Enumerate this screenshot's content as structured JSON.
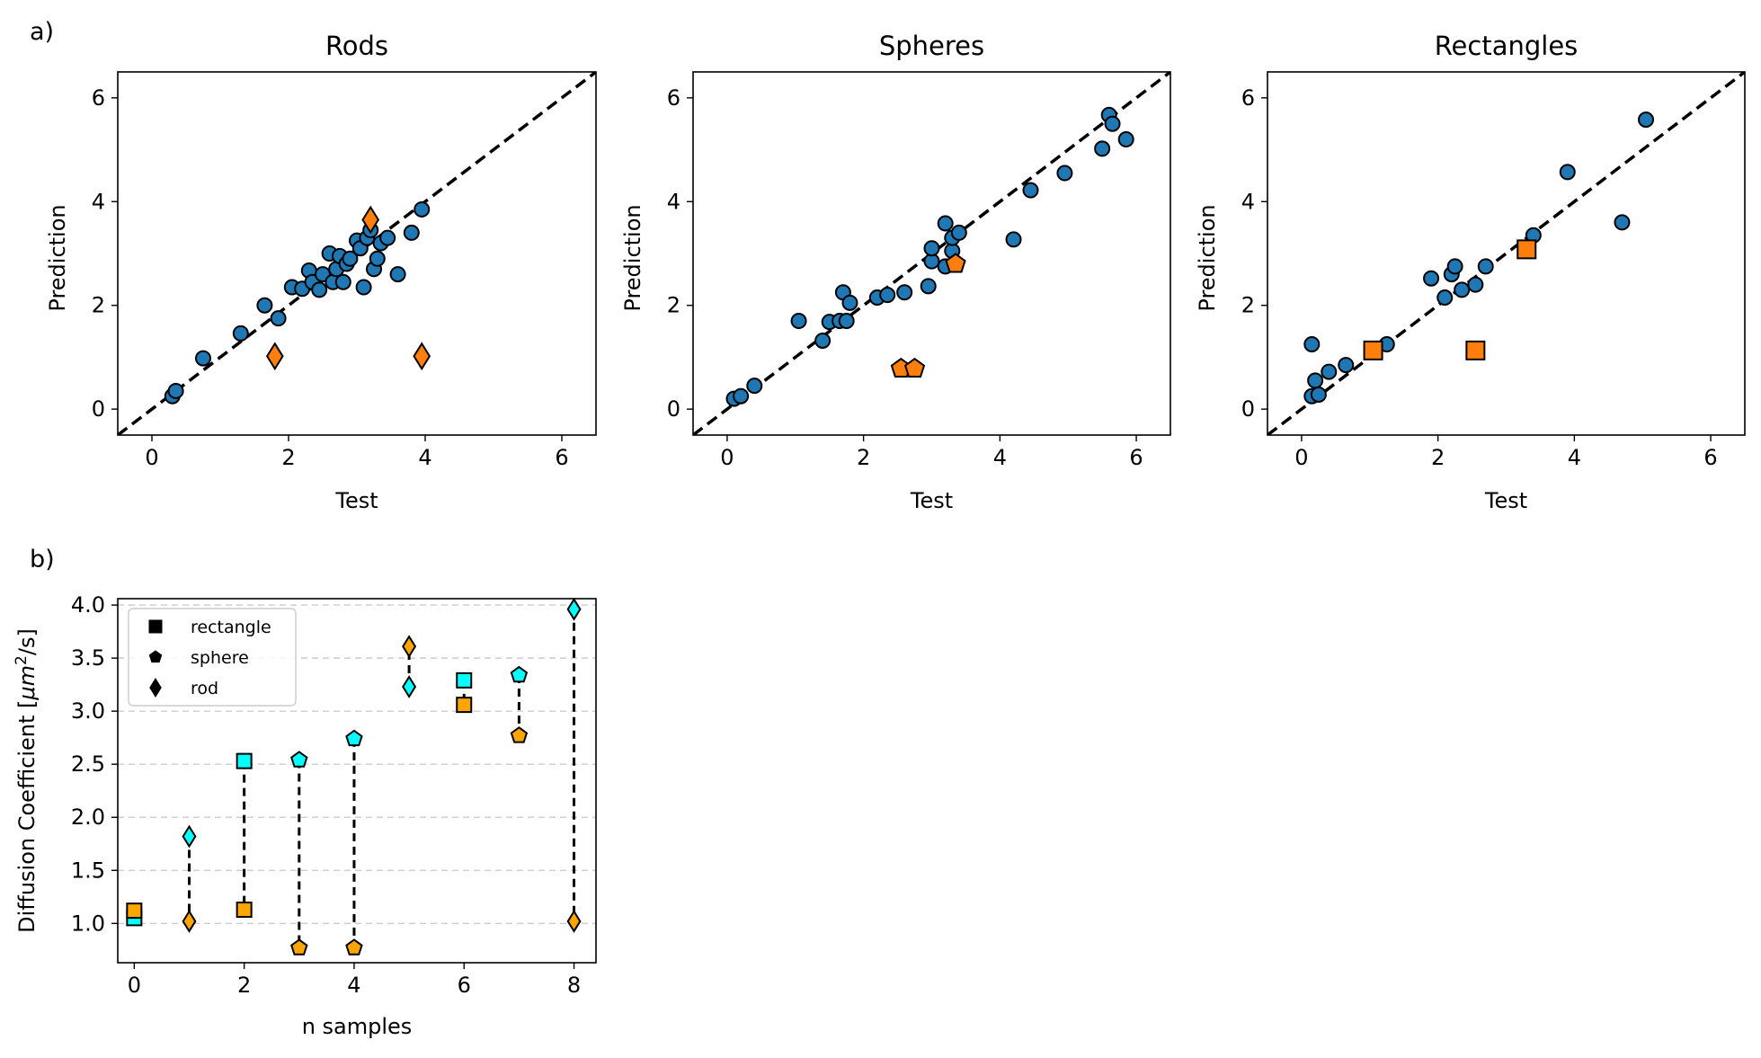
{
  "panel_labels": [
    "a)",
    "b)"
  ],
  "chart_data": [
    {
      "type": "scatter",
      "title": "Rods",
      "xlabel": "Test",
      "ylabel": "Prediction",
      "xlim": [
        -0.5,
        6.5
      ],
      "ylim": [
        -0.5,
        6.5
      ],
      "xticks": [
        0,
        2,
        4,
        6
      ],
      "yticks": [
        0,
        2,
        4,
        6
      ],
      "reference_line": "y = x",
      "outlier_marker": "diamond",
      "series": [
        {
          "role": "points",
          "color": "#1f77b4",
          "marker": "circle",
          "points": [
            [
              0.3,
              0.25
            ],
            [
              0.35,
              0.35
            ],
            [
              0.75,
              0.98
            ],
            [
              1.3,
              1.46
            ],
            [
              1.65,
              2.0
            ],
            [
              1.85,
              1.75
            ],
            [
              2.05,
              2.35
            ],
            [
              2.2,
              2.32
            ],
            [
              2.3,
              2.67
            ],
            [
              2.35,
              2.45
            ],
            [
              2.45,
              2.3
            ],
            [
              2.5,
              2.6
            ],
            [
              2.6,
              3.0
            ],
            [
              2.65,
              2.45
            ],
            [
              2.7,
              2.7
            ],
            [
              2.75,
              2.95
            ],
            [
              2.8,
              2.45
            ],
            [
              2.85,
              2.8
            ],
            [
              2.9,
              2.9
            ],
            [
              3.0,
              3.25
            ],
            [
              3.05,
              3.1
            ],
            [
              3.1,
              2.35
            ],
            [
              3.15,
              3.3
            ],
            [
              3.2,
              3.45
            ],
            [
              3.25,
              2.7
            ],
            [
              3.3,
              2.9
            ],
            [
              3.35,
              3.2
            ],
            [
              3.45,
              3.3
            ],
            [
              3.6,
              2.6
            ],
            [
              3.8,
              3.4
            ],
            [
              3.95,
              3.85
            ]
          ]
        },
        {
          "role": "outliers",
          "color": "#ff7f0e",
          "marker": "diamond",
          "points": [
            [
              1.8,
              1.02
            ],
            [
              3.2,
              3.65
            ],
            [
              3.95,
              1.02
            ]
          ]
        }
      ]
    },
    {
      "type": "scatter",
      "title": "Spheres",
      "xlabel": "Test",
      "ylabel": "Prediction",
      "xlim": [
        -0.5,
        6.5
      ],
      "ylim": [
        -0.5,
        6.5
      ],
      "xticks": [
        0,
        2,
        4,
        6
      ],
      "yticks": [
        0,
        2,
        4,
        6
      ],
      "reference_line": "y = x",
      "outlier_marker": "pentagon",
      "series": [
        {
          "role": "points",
          "color": "#1f77b4",
          "marker": "circle",
          "points": [
            [
              0.1,
              0.2
            ],
            [
              0.2,
              0.25
            ],
            [
              0.4,
              0.45
            ],
            [
              1.05,
              1.7
            ],
            [
              1.4,
              1.32
            ],
            [
              1.5,
              1.68
            ],
            [
              1.65,
              1.7
            ],
            [
              1.7,
              2.25
            ],
            [
              1.75,
              1.7
            ],
            [
              1.8,
              2.05
            ],
            [
              2.2,
              2.15
            ],
            [
              2.35,
              2.2
            ],
            [
              2.6,
              2.25
            ],
            [
              2.95,
              2.37
            ],
            [
              3.0,
              2.85
            ],
            [
              3.0,
              3.1
            ],
            [
              3.2,
              2.75
            ],
            [
              3.2,
              3.58
            ],
            [
              3.3,
              3.05
            ],
            [
              3.3,
              3.3
            ],
            [
              3.4,
              3.4
            ],
            [
              4.2,
              3.27
            ],
            [
              4.45,
              4.22
            ],
            [
              4.95,
              4.55
            ],
            [
              5.5,
              5.02
            ],
            [
              5.6,
              5.67
            ],
            [
              5.65,
              5.5
            ],
            [
              5.85,
              5.2
            ]
          ]
        },
        {
          "role": "outliers",
          "color": "#ff7f0e",
          "marker": "pentagon",
          "points": [
            [
              2.55,
              0.78
            ],
            [
              2.75,
              0.78
            ],
            [
              3.35,
              2.8
            ]
          ]
        }
      ]
    },
    {
      "type": "scatter",
      "title": "Rectangles",
      "xlabel": "Test",
      "ylabel": "Prediction",
      "xlim": [
        -0.5,
        6.5
      ],
      "ylim": [
        -0.5,
        6.5
      ],
      "xticks": [
        0,
        2,
        4,
        6
      ],
      "yticks": [
        0,
        2,
        4,
        6
      ],
      "reference_line": "y = x",
      "outlier_marker": "square",
      "series": [
        {
          "role": "points",
          "color": "#1f77b4",
          "marker": "circle",
          "points": [
            [
              0.15,
              0.25
            ],
            [
              0.15,
              1.25
            ],
            [
              0.2,
              0.55
            ],
            [
              0.25,
              0.28
            ],
            [
              0.4,
              0.72
            ],
            [
              0.65,
              0.85
            ],
            [
              1.25,
              1.25
            ],
            [
              1.9,
              2.52
            ],
            [
              2.1,
              2.15
            ],
            [
              2.2,
              2.6
            ],
            [
              2.25,
              2.75
            ],
            [
              2.35,
              2.3
            ],
            [
              2.55,
              2.4
            ],
            [
              2.7,
              2.75
            ],
            [
              3.4,
              3.35
            ],
            [
              3.9,
              4.57
            ],
            [
              4.7,
              3.6
            ],
            [
              5.05,
              5.58
            ]
          ]
        },
        {
          "role": "outliers",
          "color": "#ff7f0e",
          "marker": "square",
          "points": [
            [
              1.05,
              1.13
            ],
            [
              2.55,
              1.13
            ],
            [
              3.3,
              3.08
            ]
          ]
        }
      ]
    },
    {
      "type": "scatter",
      "xlabel": "n samples",
      "ylabel_prefix": "Diffusion Coefficient [",
      "ylabel_unit_base": "μm",
      "ylabel_unit_exp": "2",
      "ylabel_suffix": "/s]",
      "xlim": [
        -0.3,
        8.4
      ],
      "ylim": [
        0.63,
        4.06
      ],
      "xticks": [
        0,
        2,
        4,
        6,
        8
      ],
      "yticks": [
        1.0,
        1.5,
        2.0,
        2.5,
        3.0,
        3.5,
        4.0
      ],
      "ytick_labels": [
        "1.0",
        "1.5",
        "2.0",
        "2.5",
        "3.0",
        "3.5",
        "4.0"
      ],
      "grid": "horizontal dashed",
      "legend": {
        "position": "top-left",
        "entries": [
          {
            "label": "rectangle",
            "marker": "square"
          },
          {
            "label": "sphere",
            "marker": "pentagon"
          },
          {
            "label": "rod",
            "marker": "diamond"
          }
        ]
      },
      "colors": {
        "cyan": "#00ffff",
        "orange": "#ffa500"
      },
      "pairs": [
        {
          "n": 0,
          "shape": "square",
          "cyan": 1.05,
          "orange": 1.12
        },
        {
          "n": 1,
          "shape": "diamond",
          "cyan": 1.82,
          "orange": 1.02
        },
        {
          "n": 2,
          "shape": "square",
          "cyan": 2.53,
          "orange": 1.13
        },
        {
          "n": 3,
          "shape": "pentagon",
          "cyan": 2.54,
          "orange": 0.77
        },
        {
          "n": 4,
          "shape": "pentagon",
          "cyan": 2.74,
          "orange": 0.77
        },
        {
          "n": 5,
          "shape": "diamond",
          "cyan": 3.23,
          "orange": 3.61
        },
        {
          "n": 6,
          "shape": "square",
          "cyan": 3.29,
          "orange": 3.06
        },
        {
          "n": 7,
          "shape": "pentagon",
          "cyan": 3.34,
          "orange": 2.77
        },
        {
          "n": 8,
          "shape": "diamond",
          "cyan": 3.96,
          "orange": 1.02
        }
      ]
    }
  ]
}
